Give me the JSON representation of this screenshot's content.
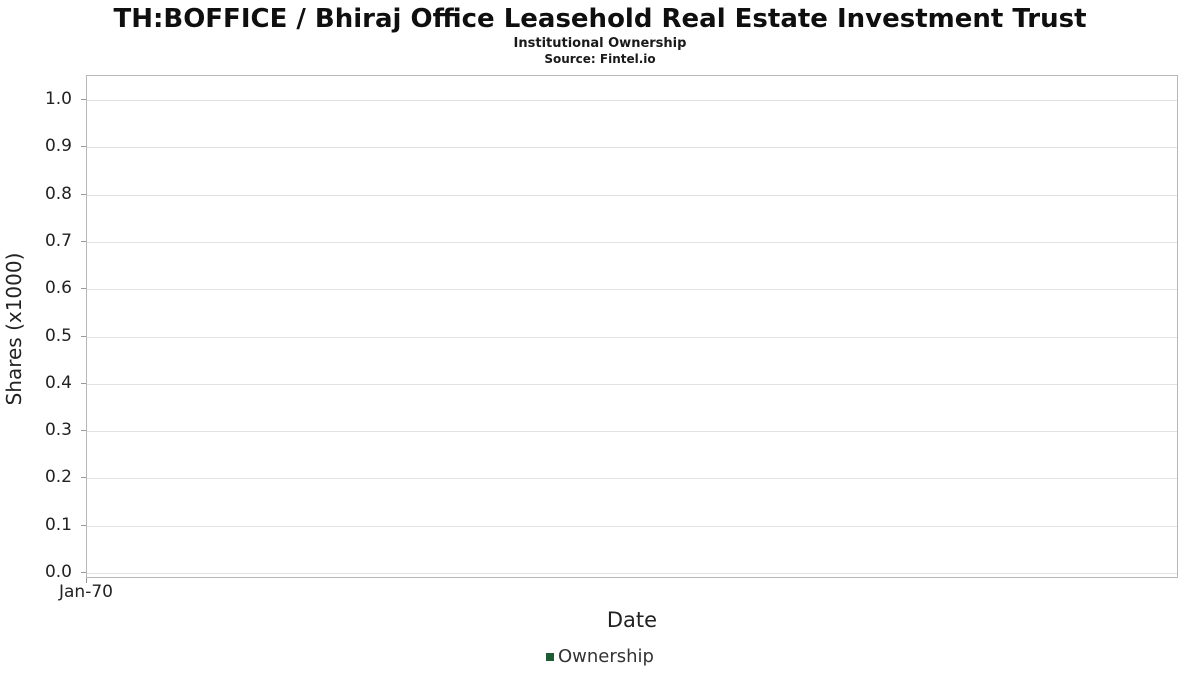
{
  "chart_data": {
    "type": "line",
    "title": "TH:BOFFICE / Bhiraj Office Leasehold Real Estate Investment Trust",
    "subtitle": "Institutional Ownership",
    "source": "Source: Fintel.io",
    "xlabel": "Date",
    "ylabel": "Shares (x1000)",
    "x_ticks": [
      "Jan-70"
    ],
    "y_ticks": [
      "0.0",
      "0.1",
      "0.2",
      "0.3",
      "0.4",
      "0.5",
      "0.6",
      "0.7",
      "0.8",
      "0.9",
      "1.0"
    ],
    "ylim": [
      0.0,
      1.0
    ],
    "grid": "horizontal",
    "legend_position": "bottom",
    "series": [
      {
        "name": "Ownership",
        "color": "#1d5c35",
        "x": [],
        "values": []
      }
    ]
  }
}
